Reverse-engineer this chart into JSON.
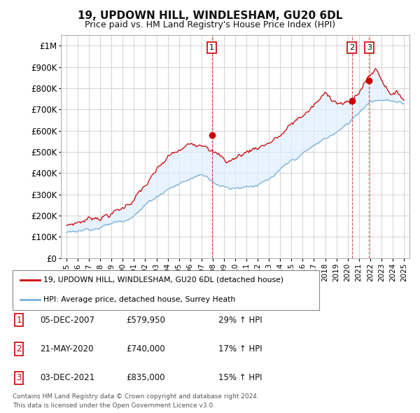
{
  "title": "19, UPDOWN HILL, WINDLESHAM, GU20 6DL",
  "subtitle": "Price paid vs. HM Land Registry's House Price Index (HPI)",
  "title_fontsize": 11,
  "subtitle_fontsize": 9,
  "background_color": "#ffffff",
  "grid_color": "#cccccc",
  "ylim": [
    0,
    1050000
  ],
  "yticks": [
    0,
    100000,
    200000,
    300000,
    400000,
    500000,
    600000,
    700000,
    800000,
    900000,
    1000000
  ],
  "ytick_labels": [
    "£0",
    "£100K",
    "£200K",
    "£300K",
    "£400K",
    "£500K",
    "£600K",
    "£700K",
    "£800K",
    "£900K",
    "£1M"
  ],
  "red_line_color": "#cc0000",
  "blue_line_color": "#7ab0d4",
  "fill_color": "#ddeeff",
  "sale_marker_color": "#cc0000",
  "transactions": [
    {
      "label": "1",
      "date": "05-DEC-2007",
      "price": 579950,
      "pct": "29%",
      "direction": "↑",
      "x_year": 2007.92
    },
    {
      "label": "2",
      "date": "21-MAY-2020",
      "price": 740000,
      "pct": "17%",
      "direction": "↑",
      "x_year": 2020.38
    },
    {
      "label": "3",
      "date": "03-DEC-2021",
      "price": 835000,
      "pct": "15%",
      "direction": "↑",
      "x_year": 2021.92
    }
  ],
  "legend_entries": [
    {
      "label": "19, UPDOWN HILL, WINDLESHAM, GU20 6DL (detached house)",
      "color": "#cc0000"
    },
    {
      "label": "HPI: Average price, detached house, Surrey Heath",
      "color": "#7ab0d4"
    }
  ],
  "footer_lines": [
    "Contains HM Land Registry data © Crown copyright and database right 2024.",
    "This data is licensed under the Open Government Licence v3.0."
  ],
  "xlim": [
    1994.5,
    2025.5
  ],
  "xticks": [
    1995,
    1996,
    1997,
    1998,
    1999,
    2000,
    2001,
    2002,
    2003,
    2004,
    2005,
    2006,
    2007,
    2008,
    2009,
    2010,
    2011,
    2012,
    2013,
    2014,
    2015,
    2016,
    2017,
    2018,
    2019,
    2020,
    2021,
    2022,
    2023,
    2024,
    2025
  ]
}
